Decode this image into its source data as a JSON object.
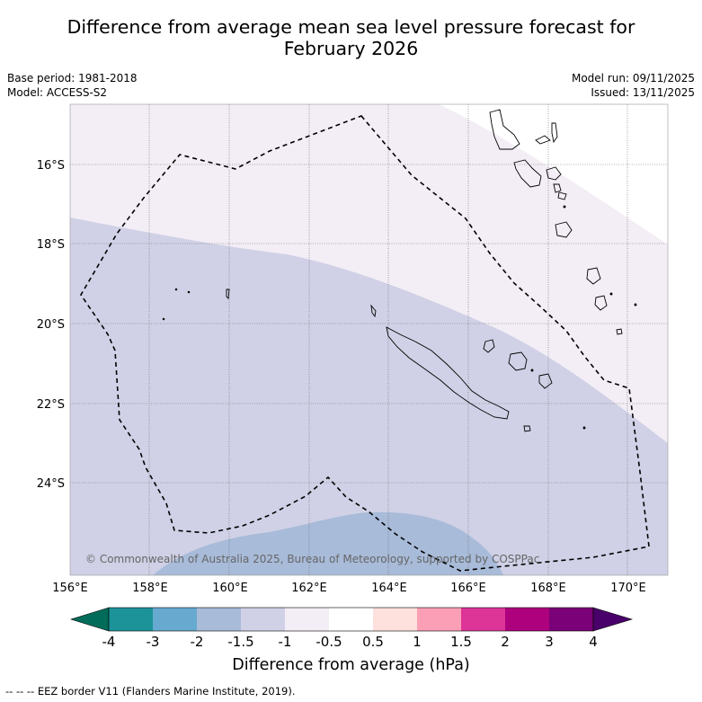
{
  "title": {
    "line1": "Difference from average mean sea level pressure forecast for",
    "line2": "February 2026"
  },
  "meta": {
    "base_period": "Base period: 1981-2018",
    "model": "Model: ACCESS-S2",
    "model_run": "Model run: 09/11/2025",
    "issued": "Issued: 13/11/2025"
  },
  "map": {
    "lat_labels": [
      "16°S",
      "18°S",
      "20°S",
      "22°S",
      "24°S"
    ],
    "lon_labels": [
      "156°E",
      "158°E",
      "160°E",
      "162°E",
      "164°E",
      "166°E",
      "168°E",
      "170°E"
    ],
    "copyright": "© Commonwealth of Australia 2025, Bureau of Meteorology, supported by COSPPac",
    "regions": [
      {
        "category": "-1 to -0.5",
        "color": "#f3edf5"
      },
      {
        "category": "-1.5 to -1",
        "color": "#d0d1e6"
      },
      {
        "category": "-2 to -1.5",
        "color": "#a8bbd9"
      }
    ]
  },
  "colorbar": {
    "title": "Difference from average (hPa)",
    "ticks": [
      "-4",
      "-3",
      "-2",
      "-1.5",
      "-1",
      "-0.5",
      "0.5",
      "1",
      "1.5",
      "2",
      "3",
      "4"
    ],
    "colors": [
      "#1b9398",
      "#67a9cf",
      "#a8bbd9",
      "#d0d1e6",
      "#f3edf5",
      "#ffffff",
      "#fee0dd",
      "#fa9fb5",
      "#dd3497",
      "#ae017e",
      "#7a0177"
    ],
    "low_extend_color": "#016c59",
    "high_extend_color": "#49006a"
  },
  "footnote": "-- -- -- EEZ border V11 (Flanders Marine Institute, 2019)."
}
